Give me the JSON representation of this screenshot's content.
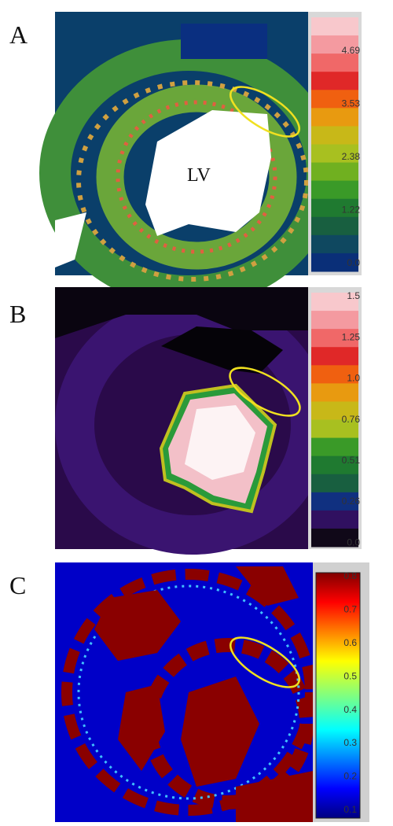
{
  "panels": [
    {
      "label": "A",
      "annotation": "LV",
      "colorbar_ticks": [
        "4.69",
        "3.53",
        "2.38",
        "1.22",
        "0.0"
      ]
    },
    {
      "label": "B",
      "colorbar_ticks": [
        "1.5",
        "1.25",
        "1.0",
        "0.76",
        "0.51",
        "0.26",
        "0.0"
      ]
    },
    {
      "label": "C",
      "colorbar_ticks": [
        "0.8",
        "0.7",
        "0.6",
        "0.5",
        "0.4",
        "0.3",
        "0.2",
        "0.1"
      ]
    }
  ]
}
